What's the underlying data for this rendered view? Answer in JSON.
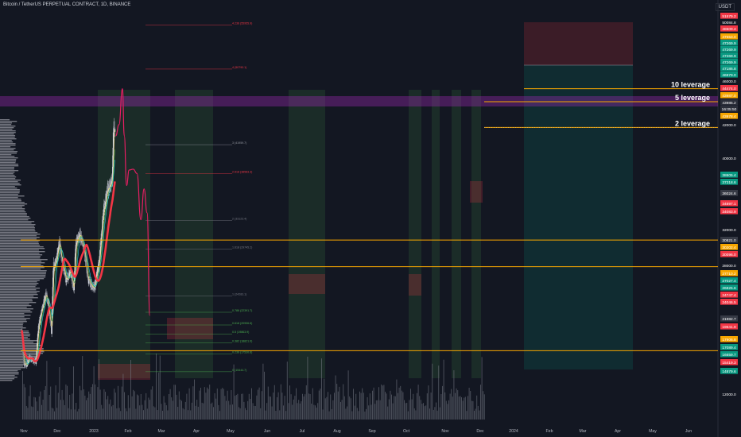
{
  "header": {
    "symbol_title": "Bitcoin / TetherUS PERPETUAL CONTRACT, 1D, BINANCE",
    "currency": "USDT"
  },
  "chart_data": {
    "type": "candlestick",
    "x_ticks": [
      "Nov",
      "Dec",
      "2023",
      "Feb",
      "Mar",
      "Apr",
      "May",
      "Jun",
      "Jul",
      "Aug",
      "Sep",
      "Oct",
      "Nov",
      "Dec",
      "2024",
      "Feb",
      "Mar",
      "Apr",
      "May",
      "Jun"
    ],
    "y_axis_labels": [
      "51579.2",
      "50084.8",
      "48509.4",
      "47553.0",
      "47269.9",
      "47269.9",
      "47269.9",
      "47269.9",
      "47186.8",
      "46979.0",
      "46000.0",
      "44474.0",
      "43987.0",
      "43985.2",
      "16:05:50",
      "43978.4",
      "42000.0",
      "40000.0",
      "38605.4",
      "37318.6",
      "36024.6",
      "34897.1",
      "34083.9",
      "32000.0",
      "30821.0",
      "30202.4",
      "30096.0",
      "28000.0",
      "27710.2",
      "27027.4",
      "26825.6",
      "24747.4",
      "24046.5",
      "21982.7",
      "19641.9",
      "17906.8",
      "17089.4",
      "16659.7",
      "15419.3",
      "14879.6",
      "12000.0"
    ],
    "current_price": "43985.2",
    "countdown": "16:05:50",
    "leverage_labels": [
      {
        "text": "10 leverage",
        "price": 48500
      },
      {
        "text": "5 leverage",
        "price": 46979
      },
      {
        "text": "2 leverage",
        "price": 43978
      }
    ],
    "key_levels": [
      30821,
      27710,
      17906
    ],
    "fib_labels": [
      {
        "text": "4.236 (55955.9)",
        "price": 55956
      },
      {
        "text": "4 (50790.1)",
        "price": 50790
      },
      {
        "text": "3 (41959.7)",
        "price": 41960
      },
      {
        "text": "2.618 (38583.3)",
        "price": 38583
      },
      {
        "text": "2 (33123.4)",
        "price": 33123
      },
      {
        "text": "1.618 (29745.2)",
        "price": 29745
      },
      {
        "text": "1 (24283.1)",
        "price": 24283
      },
      {
        "text": "0.786 (22391.7)",
        "price": 22392
      },
      {
        "text": "0.618 (20906.6)",
        "price": 20907
      },
      {
        "text": "0.5 (19863.9)",
        "price": 19864
      },
      {
        "text": "0.382 (18821.0)",
        "price": 18821
      },
      {
        "text": "0.236 (17530.6)",
        "price": 17531
      },
      {
        "text": "0 (15444.7)",
        "price": 15445
      }
    ],
    "price_approx": [
      [
        "2022-11-01",
        20400
      ],
      [
        "2022-11-09",
        16500
      ],
      [
        "2022-11-21",
        16200
      ],
      [
        "2022-12-05",
        17100
      ],
      [
        "2022-12-20",
        16800
      ],
      [
        "2023-01-01",
        16600
      ],
      [
        "2023-01-14",
        20800
      ],
      [
        "2023-01-31",
        23100
      ],
      [
        "2023-02-16",
        24600
      ],
      [
        "2023-02-25",
        23200
      ],
      [
        "2023-03-10",
        20100
      ],
      [
        "2023-03-19",
        27700
      ],
      [
        "2023-04-01",
        28400
      ],
      [
        "2023-04-14",
        30400
      ],
      [
        "2023-04-26",
        28400
      ],
      [
        "2023-05-12",
        26200
      ],
      [
        "2023-06-01",
        27100
      ],
      [
        "2023-06-15",
        25100
      ],
      [
        "2023-06-25",
        30600
      ],
      [
        "2023-07-13",
        31400
      ],
      [
        "2023-08-01",
        29200
      ],
      [
        "2023-08-17",
        26200
      ],
      [
        "2023-09-11",
        25100
      ],
      [
        "2023-10-01",
        27900
      ],
      [
        "2023-10-24",
        34500
      ],
      [
        "2023-11-09",
        36800
      ],
      [
        "2023-11-30",
        37700
      ],
      [
        "2023-12-05",
        44000
      ],
      [
        "2023-12-10",
        43985
      ]
    ],
    "projection_approx": [
      [
        "2023-12-14",
        43000
      ],
      [
        "2023-12-28",
        44300
      ],
      [
        "2024-01-12",
        48500
      ],
      [
        "2024-01-20",
        43000
      ],
      [
        "2024-01-30",
        37200
      ],
      [
        "2024-02-10",
        39000
      ],
      [
        "2024-02-28",
        39100
      ],
      [
        "2024-03-15",
        38600
      ],
      [
        "2024-04-01",
        33200
      ],
      [
        "2024-04-15",
        36800
      ],
      [
        "2024-04-28",
        34000
      ],
      [
        "2024-05-10",
        22000
      ]
    ],
    "ylim": [
      12000,
      57000
    ],
    "grid": false
  }
}
